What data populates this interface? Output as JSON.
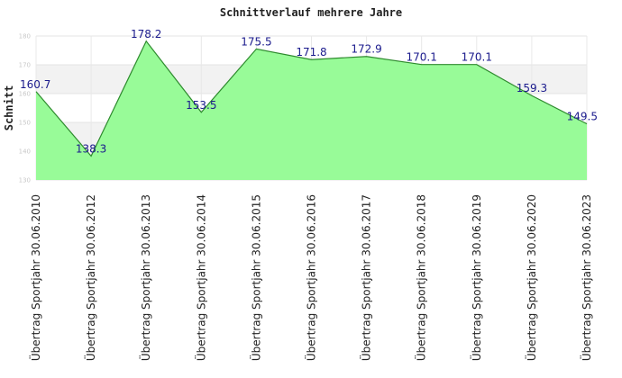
{
  "chart_data": {
    "type": "area",
    "title": "Schnittverlauf mehrere Jahre",
    "ylabel": "Schnitt",
    "xlabel": "",
    "ylim": [
      130,
      180
    ],
    "yticks": [
      130,
      140,
      150,
      160,
      170,
      180
    ],
    "grid": true,
    "legend": "none",
    "colors": {
      "fill": "#98fb98",
      "line": "#2e8b2e",
      "label": "#1a1a8c",
      "band": "#f2f2f2"
    },
    "categories": [
      "Übertrag Sportjahr 30.06.2010",
      "Übertrag Sportjahr 30.06.2012",
      "Übertrag Sportjahr 30.06.2013",
      "Übertrag Sportjahr 30.06.2014",
      "Übertrag Sportjahr 30.06.2015",
      "Übertrag Sportjahr 30.06.2016",
      "Übertrag Sportjahr 30.06.2017",
      "Übertrag Sportjahr 30.06.2018",
      "Übertrag Sportjahr 30.06.2019",
      "Übertrag Sportjahr 30.06.2020",
      "Übertrag Sportjahr 30.06.2023"
    ],
    "values": [
      160.7,
      138.3,
      178.2,
      153.5,
      175.5,
      171.8,
      172.9,
      170.1,
      170.1,
      159.3,
      149.5
    ]
  }
}
